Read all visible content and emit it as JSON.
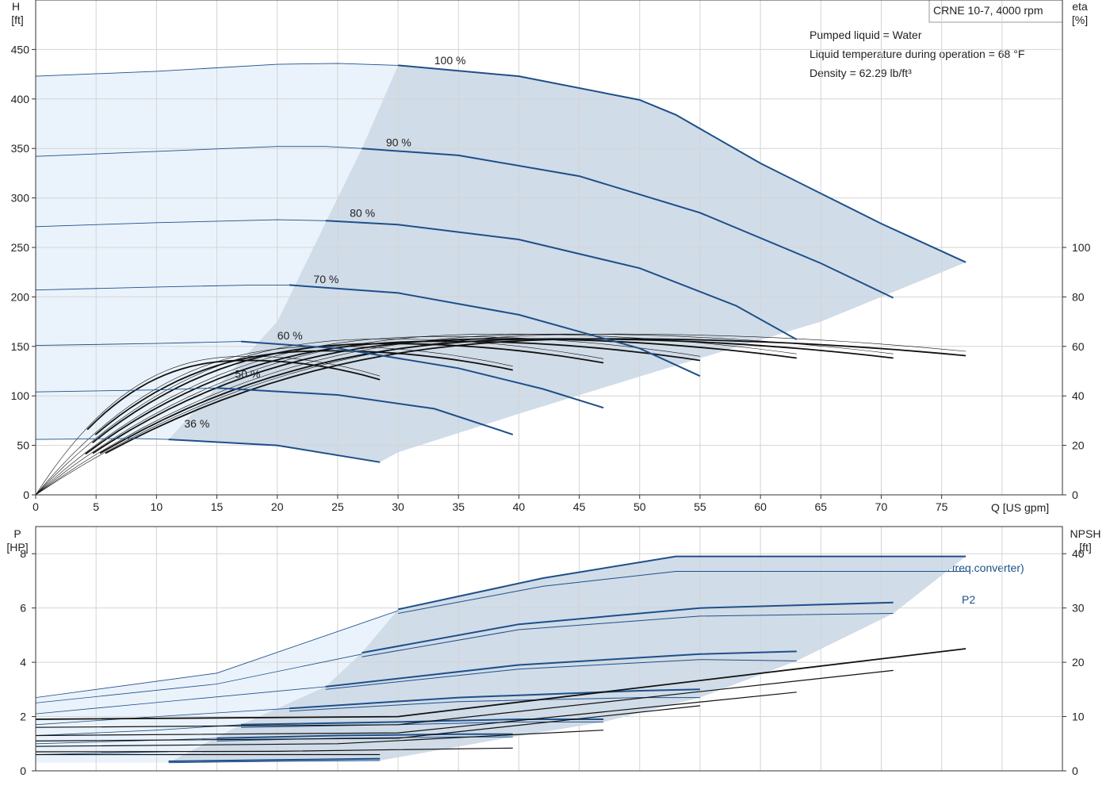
{
  "header": {
    "title": "CRNE 10-7, 4000 rpm",
    "notes": [
      "Pumped liquid = Water",
      "Liquid temperature during operation = 68 °F",
      "Density = 62.29 lb/ft³"
    ]
  },
  "colors": {
    "series_blue": "#1e4f8a",
    "efficiency_black": "#111111",
    "area_dark": "#d0dce8",
    "area_light": "#eaf3fb",
    "grid": "#d4d4d4",
    "axis": "#333333"
  },
  "axes": {
    "upper_left": {
      "name": "H",
      "unit": "[ft]",
      "ticks": [
        "0",
        "50",
        "100",
        "150",
        "200",
        "250",
        "300",
        "350",
        "400",
        "450"
      ],
      "range": [
        0,
        500
      ]
    },
    "upper_right": {
      "name": "eta",
      "unit": "[%]",
      "ticks": [
        "0",
        "20",
        "40",
        "60",
        "80",
        "100"
      ],
      "range": [
        0,
        200
      ]
    },
    "x": {
      "label": "Q [US gpm]",
      "ticks": [
        "0",
        "5",
        "10",
        "15",
        "20",
        "25",
        "30",
        "35",
        "40",
        "45",
        "50",
        "55",
        "60",
        "65",
        "70",
        "75"
      ],
      "range": [
        0,
        85
      ]
    },
    "lower_left": {
      "name": "P",
      "unit": "[HP]",
      "ticks": [
        "0",
        "2",
        "4",
        "6",
        "8"
      ],
      "range": [
        0,
        9
      ]
    },
    "lower_right": {
      "name": "NPSH",
      "unit": "[ft]",
      "ticks": [
        "0",
        "10",
        "20",
        "30",
        "40"
      ],
      "range": [
        0,
        45
      ]
    }
  },
  "chart_data": [
    {
      "type": "line",
      "title": "",
      "xlabel": "Q [US gpm]",
      "ylabel": "H [ft]",
      "y2label": "eta [%]",
      "xlim": [
        0,
        85
      ],
      "ylim": [
        0,
        500
      ],
      "y2lim": [
        0,
        200
      ],
      "grid": true,
      "head_curves": [
        {
          "label": "100 %",
          "label_at": [
            33,
            435
          ],
          "light": [
            [
              0,
              423
            ],
            [
              10,
              428
            ],
            [
              20,
              435
            ],
            [
              25,
              436
            ],
            [
              30,
              434
            ]
          ],
          "dark": [
            [
              30,
              434
            ],
            [
              40,
              423
            ],
            [
              50,
              399
            ],
            [
              53,
              384
            ],
            [
              60,
              335
            ],
            [
              70,
              274
            ],
            [
              77,
              235
            ]
          ]
        },
        {
          "label": "90 %",
          "label_at": [
            29,
            352
          ],
          "light": [
            [
              0,
              342
            ],
            [
              10,
              347
            ],
            [
              20,
              352
            ],
            [
              24,
              352
            ],
            [
              27,
              350
            ]
          ],
          "dark": [
            [
              27,
              350
            ],
            [
              35,
              343
            ],
            [
              45,
              322
            ],
            [
              55,
              285
            ],
            [
              65,
              234
            ],
            [
              71,
              199
            ]
          ]
        },
        {
          "label": "80 %",
          "label_at": [
            26,
            281
          ],
          "light": [
            [
              0,
              271
            ],
            [
              10,
              275
            ],
            [
              20,
              278
            ],
            [
              24,
              277
            ]
          ],
          "dark": [
            [
              24,
              277
            ],
            [
              30,
              273
            ],
            [
              40,
              258
            ],
            [
              50,
              229
            ],
            [
              58,
              191
            ],
            [
              63,
              157
            ]
          ]
        },
        {
          "label": "70 %",
          "label_at": [
            23,
            214
          ],
          "light": [
            [
              0,
              207
            ],
            [
              10,
              210
            ],
            [
              18,
              212
            ],
            [
              21,
              212
            ]
          ],
          "dark": [
            [
              21,
              212
            ],
            [
              30,
              204
            ],
            [
              40,
              182
            ],
            [
              50,
              148
            ],
            [
              55,
              120
            ]
          ]
        },
        {
          "label": "60 %",
          "label_at": [
            20,
            157
          ],
          "light": [
            [
              0,
              151
            ],
            [
              10,
              153
            ],
            [
              17,
              155
            ]
          ],
          "dark": [
            [
              17,
              155
            ],
            [
              25,
              148
            ],
            [
              35,
              128
            ],
            [
              42,
              107
            ],
            [
              47,
              88
            ]
          ]
        },
        {
          "label": "50 %",
          "label_at": [
            16.5,
            118
          ],
          "light": [
            [
              0,
              104
            ],
            [
              10,
              106
            ],
            [
              15,
              108
            ]
          ],
          "dark": [
            [
              15,
              108
            ],
            [
              25,
              101
            ],
            [
              33,
              87
            ],
            [
              39.5,
              61
            ]
          ]
        },
        {
          "label": "36 %",
          "label_at": [
            12.3,
            68
          ],
          "light": [
            [
              0,
              56
            ],
            [
              8,
              57
            ],
            [
              11,
              56
            ]
          ],
          "dark": [
            [
              11,
              56
            ],
            [
              20,
              50
            ],
            [
              28.5,
              33
            ]
          ]
        }
      ],
      "upper_dark_polygon": [
        [
          30,
          434
        ],
        [
          40,
          423
        ],
        [
          50,
          399
        ],
        [
          53,
          384
        ],
        [
          60,
          335
        ],
        [
          70,
          274
        ],
        [
          77,
          235
        ],
        [
          65,
          175
        ],
        [
          52,
          127
        ],
        [
          40,
          82
        ],
        [
          30,
          43
        ],
        [
          28.5,
          33
        ],
        [
          20,
          50
        ],
        [
          11,
          56
        ],
        [
          20,
          175
        ],
        [
          27,
          350
        ]
      ],
      "upper_light_polygon": [
        [
          0,
          423
        ],
        [
          10,
          428
        ],
        [
          20,
          435
        ],
        [
          25,
          436
        ],
        [
          30,
          434
        ],
        [
          27,
          350
        ],
        [
          20,
          175
        ],
        [
          11,
          56
        ],
        [
          0,
          56
        ]
      ],
      "efficiency_curves": [
        {
          "end": [
            28.5,
            48
          ],
          "peak": 56
        },
        {
          "end": [
            39.5,
            52
          ],
          "peak": 60
        },
        {
          "end": [
            47,
            55
          ],
          "peak": 63
        },
        {
          "end": [
            55,
            56
          ],
          "peak": 64
        },
        {
          "end": [
            63,
            57
          ],
          "peak": 65
        },
        {
          "end": [
            71,
            57
          ],
          "peak": 65
        },
        {
          "end": [
            77,
            58
          ],
          "peak": 65
        }
      ]
    },
    {
      "type": "line",
      "title": "",
      "xlabel": "Q [US gpm]",
      "ylabel": "P [HP]",
      "y2label": "NPSH [ft]",
      "xlim": [
        0,
        85
      ],
      "ylim": [
        0,
        9
      ],
      "y2lim": [
        0,
        45
      ],
      "grid": true,
      "legend": [
        "P1 (motor+freq.converter)",
        "P2"
      ],
      "power_curves": [
        {
          "light": [
            [
              0,
              2.7
            ],
            [
              15,
              3.6
            ],
            [
              30,
              5.9
            ]
          ],
          "dark_p1": [
            [
              30,
              5.95
            ],
            [
              42,
              7.1
            ],
            [
              53,
              7.9
            ],
            [
              77,
              7.9
            ]
          ],
          "dark_p2": [
            [
              30,
              5.8
            ],
            [
              42,
              6.8
            ],
            [
              53,
              7.35
            ],
            [
              77,
              7.35
            ]
          ]
        },
        {
          "light": [
            [
              0,
              2.5
            ],
            [
              15,
              3.2
            ],
            [
              27,
              4.3
            ]
          ],
          "dark_p1": [
            [
              27,
              4.35
            ],
            [
              40,
              5.4
            ],
            [
              55,
              6.0
            ],
            [
              71,
              6.2
            ]
          ],
          "dark_p2": [
            [
              27,
              4.2
            ],
            [
              40,
              5.2
            ],
            [
              55,
              5.7
            ],
            [
              71,
              5.8
            ]
          ]
        },
        {
          "light": [
            [
              0,
              2.1
            ],
            [
              12,
              2.6
            ],
            [
              24,
              3.1
            ]
          ],
          "dark_p1": [
            [
              24,
              3.1
            ],
            [
              40,
              3.9
            ],
            [
              55,
              4.3
            ],
            [
              63,
              4.4
            ]
          ],
          "dark_p2": [
            [
              24,
              3.0
            ],
            [
              40,
              3.75
            ],
            [
              55,
              4.1
            ],
            [
              63,
              4.05
            ]
          ]
        },
        {
          "light": [
            [
              0,
              1.7
            ],
            [
              10,
              2.0
            ],
            [
              21,
              2.3
            ]
          ],
          "dark_p1": [
            [
              21,
              2.3
            ],
            [
              35,
              2.7
            ],
            [
              50,
              2.95
            ],
            [
              55,
              3.0
            ]
          ],
          "dark_p2": [
            [
              21,
              2.2
            ],
            [
              35,
              2.55
            ],
            [
              50,
              2.7
            ],
            [
              55,
              2.7
            ]
          ]
        },
        {
          "light": [
            [
              0,
              1.3
            ],
            [
              10,
              1.5
            ],
            [
              17,
              1.7
            ]
          ],
          "dark_p1": [
            [
              17,
              1.7
            ],
            [
              30,
              1.8
            ],
            [
              40,
              1.9
            ],
            [
              47,
              1.9
            ]
          ],
          "dark_p2": [
            [
              17,
              1.6
            ],
            [
              30,
              1.7
            ],
            [
              40,
              1.8
            ],
            [
              47,
              1.8
            ]
          ]
        },
        {
          "light": [
            [
              0,
              1.0
            ],
            [
              8,
              1.1
            ],
            [
              15,
              1.2
            ]
          ],
          "dark_p1": [
            [
              15,
              1.2
            ],
            [
              25,
              1.3
            ],
            [
              35,
              1.35
            ],
            [
              39.5,
              1.35
            ]
          ],
          "dark_p2": [
            [
              15,
              1.1
            ],
            [
              25,
              1.2
            ],
            [
              35,
              1.25
            ],
            [
              39.5,
              1.25
            ]
          ]
        },
        {
          "light": [
            [
              0,
              0.6
            ],
            [
              5,
              0.65
            ],
            [
              11,
              0.7
            ]
          ],
          "dark_p1": [
            [
              11,
              0.35
            ],
            [
              20,
              0.4
            ],
            [
              28.5,
              0.45
            ]
          ],
          "dark_p2": [
            [
              11,
              0.3
            ],
            [
              20,
              0.35
            ],
            [
              28.5,
              0.38
            ]
          ]
        }
      ],
      "npsh_curves": [
        [
          [
            0,
            3.0
          ],
          [
            10,
            3.0
          ],
          [
            28.5,
            3.0
          ]
        ],
        [
          [
            0,
            3.5
          ],
          [
            20,
            3.6
          ],
          [
            39.5,
            4.2
          ]
        ],
        [
          [
            0,
            4.5
          ],
          [
            25,
            5.0
          ],
          [
            47,
            7.5
          ]
        ],
        [
          [
            0,
            5.5
          ],
          [
            30,
            6.0
          ],
          [
            55,
            12.0
          ]
        ],
        [
          [
            0,
            6.5
          ],
          [
            30,
            7.0
          ],
          [
            63,
            14.5
          ]
        ],
        [
          [
            0,
            8.0
          ],
          [
            30,
            8.5
          ],
          [
            71,
            18.5
          ]
        ],
        [
          [
            0,
            9.5
          ],
          [
            30,
            10.0
          ],
          [
            77,
            22.5
          ]
        ]
      ],
      "lower_dark_polygon": [
        [
          30,
          5.95
        ],
        [
          42,
          7.1
        ],
        [
          53,
          7.9
        ],
        [
          77,
          7.9
        ],
        [
          71,
          5.8
        ],
        [
          63,
          4.05
        ],
        [
          55,
          2.7
        ],
        [
          47,
          1.8
        ],
        [
          39.5,
          1.25
        ],
        [
          28.5,
          0.38
        ],
        [
          11,
          0.3
        ],
        [
          17,
          1.7
        ],
        [
          24,
          3.1
        ],
        [
          27,
          4.35
        ]
      ],
      "lower_light_polygon": [
        [
          0,
          2.7
        ],
        [
          15,
          3.6
        ],
        [
          30,
          5.95
        ],
        [
          27,
          4.35
        ],
        [
          24,
          3.1
        ],
        [
          17,
          1.7
        ],
        [
          11,
          0.3
        ],
        [
          0,
          0.3
        ]
      ]
    }
  ]
}
